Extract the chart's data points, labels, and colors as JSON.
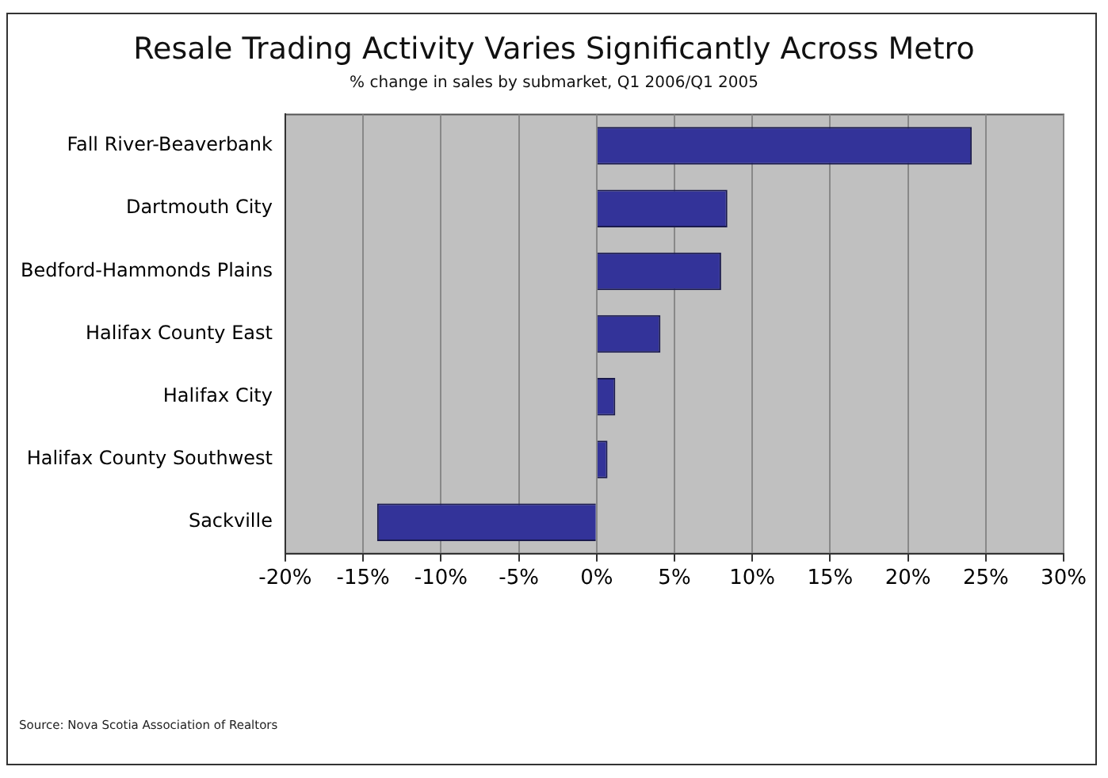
{
  "chart_data": {
    "type": "bar",
    "orientation": "horizontal",
    "title": "Resale Trading Activity Varies Significantly Across Metro",
    "subtitle": "% change in sales by submarket, Q1 2006/Q1 2005",
    "categories": [
      "Fall River-Beaverbank",
      "Dartmouth City",
      "Bedford-Hammonds Plains",
      "Halifax County East",
      "Halifax City",
      "Halifax County Southwest",
      "Sackville"
    ],
    "values": [
      24.1,
      8.4,
      8.0,
      4.1,
      1.2,
      0.7,
      -14.1
    ],
    "color": "#333399",
    "xlim": [
      -20,
      30
    ],
    "xticks": [
      {
        "value": -20,
        "label": "-20%"
      },
      {
        "value": -15,
        "label": "-15%"
      },
      {
        "value": -10,
        "label": "-10%"
      },
      {
        "value": -5,
        "label": "-5%"
      },
      {
        "value": 0,
        "label": "0%"
      },
      {
        "value": 5,
        "label": "5%"
      },
      {
        "value": 10,
        "label": "10%"
      },
      {
        "value": 15,
        "label": "15%"
      },
      {
        "value": 20,
        "label": "20%"
      },
      {
        "value": 25,
        "label": "25%"
      },
      {
        "value": 30,
        "label": "30%"
      }
    ],
    "grid": "x",
    "annotations": [
      "Source: Nova Scotia Association of Realtors"
    ]
  }
}
